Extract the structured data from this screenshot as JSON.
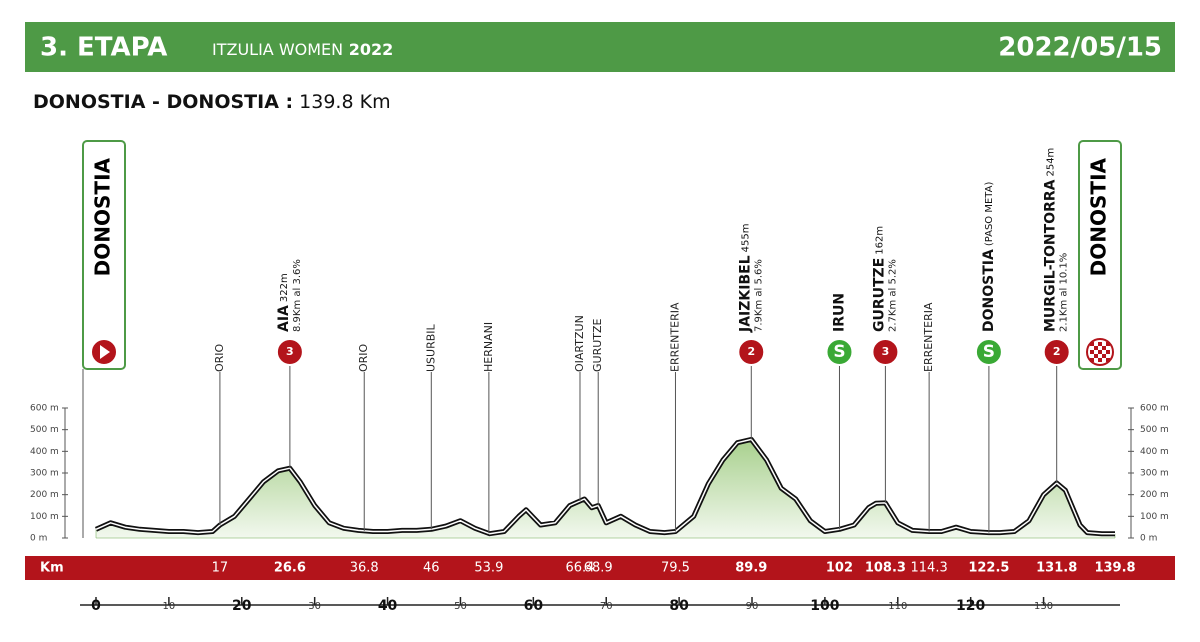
{
  "chart_data": {
    "type": "profile",
    "header": {
      "title": "3. ETAPA",
      "race": "ITZULIA WOMEN",
      "year": "2022",
      "date": "2022/05/15"
    },
    "subtitle": {
      "route": "DONOSTIA - DONOSTIA :",
      "distance": "139.8 Km"
    },
    "x_label": "Km",
    "x": [
      0,
      2,
      4,
      6,
      8,
      10,
      12,
      14,
      16,
      17,
      19,
      21,
      23,
      25,
      26.6,
      28,
      30,
      32,
      34,
      36,
      38,
      40,
      42,
      44,
      46,
      48,
      50,
      52,
      54,
      56,
      58,
      59,
      61,
      63,
      65,
      67,
      68,
      68.9,
      70,
      72,
      74,
      76,
      78,
      79.5,
      82,
      84,
      86,
      88,
      89.9,
      92,
      94,
      96,
      98,
      100,
      102,
      104,
      106,
      107,
      108.3,
      110,
      112,
      114.3,
      116,
      118,
      120,
      122.5,
      124,
      126,
      128,
      130,
      131.8,
      133,
      135,
      136,
      138,
      139.8
    ],
    "values": [
      40,
      70,
      50,
      40,
      35,
      30,
      30,
      25,
      30,
      60,
      100,
      180,
      260,
      310,
      322,
      260,
      150,
      70,
      45,
      35,
      30,
      30,
      35,
      35,
      40,
      55,
      80,
      45,
      20,
      30,
      100,
      130,
      60,
      70,
      150,
      180,
      140,
      150,
      70,
      100,
      60,
      30,
      25,
      30,
      100,
      250,
      360,
      440,
      455,
      360,
      230,
      180,
      80,
      30,
      40,
      60,
      140,
      160,
      162,
      70,
      35,
      30,
      30,
      50,
      30,
      25,
      25,
      30,
      80,
      200,
      254,
      220,
      60,
      25,
      20,
      20
    ],
    "color": "#6aa84f",
    "xlim": [
      0,
      139.8
    ],
    "xticks": [
      0,
      10,
      20,
      30,
      40,
      50,
      60,
      70,
      80,
      90,
      100,
      110,
      120,
      130
    ],
    "ylim": [
      0,
      600
    ],
    "yticks": [
      {
        "value": 0,
        "label": "0 m"
      },
      {
        "value": 100,
        "label": "100 m"
      },
      {
        "value": 200,
        "label": "200 m"
      },
      {
        "value": 300,
        "label": "300 m"
      },
      {
        "value": 400,
        "label": "400 m"
      },
      {
        "value": 500,
        "label": "500 m"
      },
      {
        "value": 600,
        "label": "600 m"
      }
    ],
    "start": {
      "name": "DONOSTIA",
      "km": 0
    },
    "finish": {
      "name": "DONOSTIA",
      "km": 139.8
    },
    "points": [
      {
        "km": 17,
        "name": "ORIO"
      },
      {
        "km": 26.6,
        "name": "AIA",
        "height": "322m",
        "detail": "8.9Km al 3.6%",
        "icon": "3"
      },
      {
        "km": 36.8,
        "name": "ORIO"
      },
      {
        "km": 46,
        "name": "USURBIL"
      },
      {
        "km": 53.9,
        "name": "HERNANI"
      },
      {
        "km": 66.4,
        "name": "OIARTZUN"
      },
      {
        "km": 68.9,
        "name": "GURUTZE"
      },
      {
        "km": 79.5,
        "name": "ERRENTERIA"
      },
      {
        "km": 89.9,
        "name": "JAIZKIBEL",
        "height": "455m",
        "detail": "7.9Km al 5.6%",
        "icon": "2"
      },
      {
        "km": 102,
        "name": "IRUN",
        "icon": "S"
      },
      {
        "km": 108.3,
        "name": "GURUTZE",
        "height": "162m",
        "detail": "2.7Km al 5.2%",
        "icon": "3"
      },
      {
        "km": 114.3,
        "name": "ERRENTERIA"
      },
      {
        "km": 122.5,
        "name": "DONOSTIA",
        "height": "(PASO META)",
        "icon": "S"
      },
      {
        "km": 131.8,
        "name": "MURGIL-TONTORRA",
        "height": "254m",
        "detail": "2.1Km al 10.1%",
        "icon": "2"
      }
    ]
  }
}
